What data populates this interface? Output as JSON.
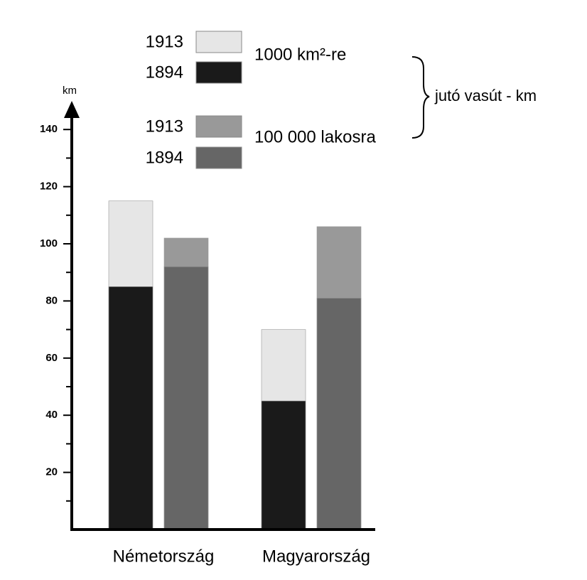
{
  "chart_data": {
    "type": "bar",
    "overlay": true,
    "y_unit": "km",
    "categories": [
      "Németország",
      "Magyarország"
    ],
    "legend_groups": [
      "1000 km²-re",
      "100 000 lakosra"
    ],
    "brace_label": "jutó vasút - km",
    "series": [
      {
        "name": "1913",
        "color": "#e6e6e6",
        "values": [
          115,
          70
        ]
      },
      {
        "name": "1894",
        "color": "#1a1a1a",
        "values": [
          85,
          45
        ]
      },
      {
        "name": "1913",
        "color": "#999999",
        "values": [
          102,
          106
        ]
      },
      {
        "name": "1894",
        "color": "#666666",
        "values": [
          92,
          81
        ]
      }
    ],
    "ylim": [
      0,
      150
    ],
    "yticks": [
      20,
      40,
      60,
      80,
      100,
      120,
      140
    ],
    "minor_yticks": [
      10,
      30,
      50,
      70,
      90,
      110,
      130
    ]
  }
}
